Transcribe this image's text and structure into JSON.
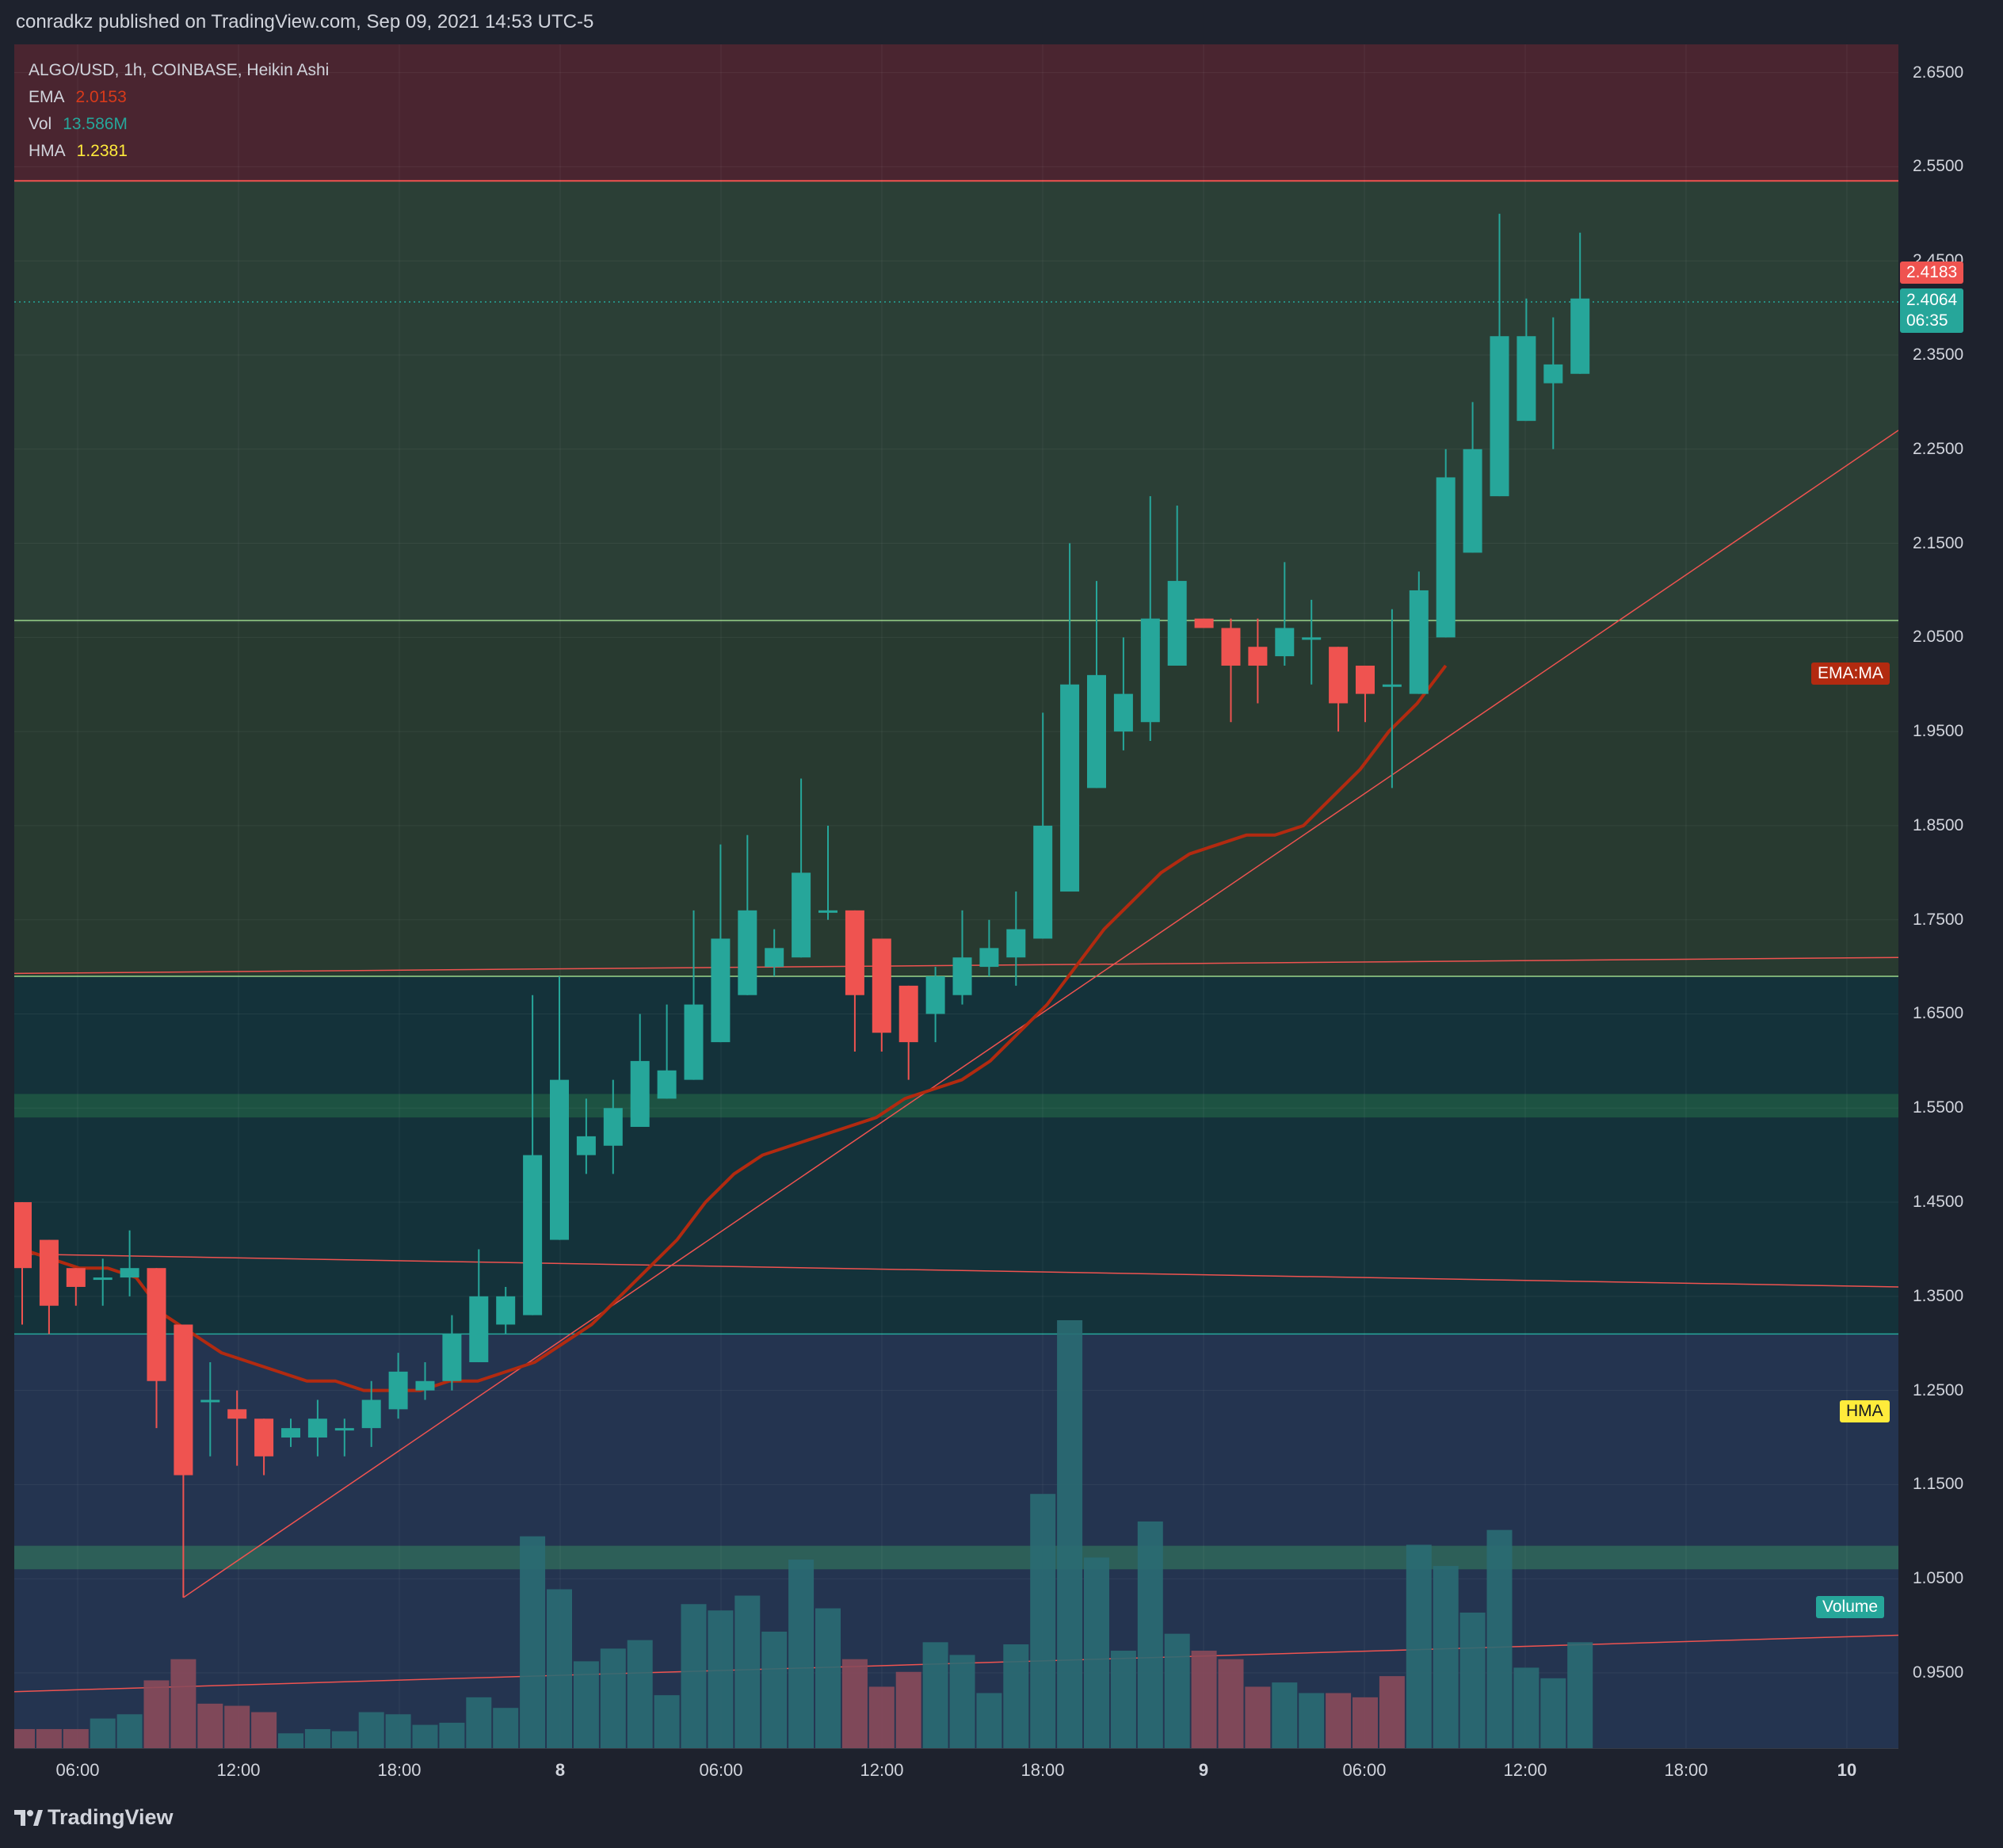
{
  "header": {
    "published": "conradkz published on TradingView.com, Sep 09, 2021 14:53 UTC-5"
  },
  "legend": {
    "symbol": "ALGO/USD, 1h, COINBASE, Heikin Ashi",
    "ema_label": "EMA",
    "ema_value": "2.0153",
    "vol_label": "Vol",
    "vol_value": "13.586M",
    "hma_label": "HMA",
    "hma_value": "1.2381"
  },
  "price_axis": {
    "labels": [
      "2.6500",
      "2.5500",
      "2.4500",
      "2.3500",
      "2.2500",
      "2.1500",
      "2.0500",
      "1.9500",
      "1.8500",
      "1.7500",
      "1.6500",
      "1.5500",
      "1.4500",
      "1.3500",
      "1.2500",
      "1.1500",
      "1.0500",
      "0.9500"
    ],
    "high_tag": "2.4183",
    "last_tag": "2.4064",
    "countdown": "06:35"
  },
  "time_axis": {
    "labels": [
      "06:00",
      "12:00",
      "18:00",
      "8",
      "06:00",
      "12:00",
      "18:00",
      "9",
      "06:00",
      "12:00",
      "18:00",
      "10"
    ]
  },
  "tags": {
    "ema_ma": "EMA:MA",
    "hma": "HMA",
    "volume": "Volume"
  },
  "footer": {
    "brand": "TradingView"
  },
  "colors": {
    "bg": "#1e222d",
    "up": "#26a69a",
    "down": "#ef5350",
    "ema": "#b22a10",
    "hma": "#ffeb3b",
    "volume_tag": "#26a69a",
    "zone_red": "#4a2530",
    "zone_green": "#2b3f36",
    "zone_teal": "#14323a",
    "zone_blue": "#243450"
  },
  "chart_data": {
    "type": "candlestick",
    "title": "ALGO/USD, 1h, COINBASE, Heikin Ashi",
    "ylim": [
      0.87,
      2.68
    ],
    "x_range_hours": [
      0,
      70
    ],
    "start_label": "Sep 07 03:00",
    "candles": [
      {
        "o": 1.45,
        "h": 1.45,
        "l": 1.32,
        "c": 1.38
      },
      {
        "o": 1.41,
        "h": 1.41,
        "l": 1.31,
        "c": 1.34
      },
      {
        "o": 1.38,
        "h": 1.38,
        "l": 1.34,
        "c": 1.36
      },
      {
        "o": 1.37,
        "h": 1.39,
        "l": 1.34,
        "c": 1.37
      },
      {
        "o": 1.37,
        "h": 1.42,
        "l": 1.35,
        "c": 1.38
      },
      {
        "o": 1.38,
        "h": 1.38,
        "l": 1.21,
        "c": 1.26
      },
      {
        "o": 1.32,
        "h": 1.32,
        "l": 1.03,
        "c": 1.16
      },
      {
        "o": 1.24,
        "h": 1.28,
        "l": 1.18,
        "c": 1.24
      },
      {
        "o": 1.23,
        "h": 1.25,
        "l": 1.17,
        "c": 1.22
      },
      {
        "o": 1.22,
        "h": 1.22,
        "l": 1.16,
        "c": 1.18
      },
      {
        "o": 1.2,
        "h": 1.22,
        "l": 1.19,
        "c": 1.21
      },
      {
        "o": 1.2,
        "h": 1.24,
        "l": 1.18,
        "c": 1.22
      },
      {
        "o": 1.21,
        "h": 1.22,
        "l": 1.18,
        "c": 1.21
      },
      {
        "o": 1.21,
        "h": 1.26,
        "l": 1.19,
        "c": 1.24
      },
      {
        "o": 1.23,
        "h": 1.29,
        "l": 1.22,
        "c": 1.27
      },
      {
        "o": 1.25,
        "h": 1.28,
        "l": 1.24,
        "c": 1.26
      },
      {
        "o": 1.26,
        "h": 1.33,
        "l": 1.25,
        "c": 1.31
      },
      {
        "o": 1.28,
        "h": 1.4,
        "l": 1.28,
        "c": 1.35
      },
      {
        "o": 1.32,
        "h": 1.36,
        "l": 1.31,
        "c": 1.35
      },
      {
        "o": 1.33,
        "h": 1.67,
        "l": 1.33,
        "c": 1.5
      },
      {
        "o": 1.41,
        "h": 1.69,
        "l": 1.41,
        "c": 1.58
      },
      {
        "o": 1.5,
        "h": 1.56,
        "l": 1.48,
        "c": 1.52
      },
      {
        "o": 1.51,
        "h": 1.58,
        "l": 1.48,
        "c": 1.55
      },
      {
        "o": 1.53,
        "h": 1.65,
        "l": 1.53,
        "c": 1.6
      },
      {
        "o": 1.56,
        "h": 1.66,
        "l": 1.56,
        "c": 1.59
      },
      {
        "o": 1.58,
        "h": 1.76,
        "l": 1.58,
        "c": 1.66
      },
      {
        "o": 1.62,
        "h": 1.83,
        "l": 1.62,
        "c": 1.73
      },
      {
        "o": 1.67,
        "h": 1.84,
        "l": 1.67,
        "c": 1.76
      },
      {
        "o": 1.7,
        "h": 1.74,
        "l": 1.69,
        "c": 1.72
      },
      {
        "o": 1.71,
        "h": 1.9,
        "l": 1.71,
        "c": 1.8
      },
      {
        "o": 1.76,
        "h": 1.85,
        "l": 1.75,
        "c": 1.76
      },
      {
        "o": 1.76,
        "h": 1.76,
        "l": 1.61,
        "c": 1.67
      },
      {
        "o": 1.73,
        "h": 1.73,
        "l": 1.61,
        "c": 1.63
      },
      {
        "o": 1.68,
        "h": 1.68,
        "l": 1.58,
        "c": 1.62
      },
      {
        "o": 1.65,
        "h": 1.7,
        "l": 1.62,
        "c": 1.69
      },
      {
        "o": 1.67,
        "h": 1.76,
        "l": 1.66,
        "c": 1.71
      },
      {
        "o": 1.7,
        "h": 1.75,
        "l": 1.69,
        "c": 1.72
      },
      {
        "o": 1.71,
        "h": 1.78,
        "l": 1.68,
        "c": 1.74
      },
      {
        "o": 1.73,
        "h": 1.97,
        "l": 1.73,
        "c": 1.85
      },
      {
        "o": 1.78,
        "h": 2.15,
        "l": 1.78,
        "c": 2.0
      },
      {
        "o": 1.89,
        "h": 2.11,
        "l": 1.89,
        "c": 2.01
      },
      {
        "o": 1.95,
        "h": 2.05,
        "l": 1.93,
        "c": 1.99
      },
      {
        "o": 1.96,
        "h": 2.2,
        "l": 1.94,
        "c": 2.07
      },
      {
        "o": 2.02,
        "h": 2.19,
        "l": 2.02,
        "c": 2.11
      },
      {
        "o": 2.07,
        "h": 2.07,
        "l": 2.06,
        "c": 2.06
      },
      {
        "o": 2.06,
        "h": 2.07,
        "l": 1.96,
        "c": 2.02
      },
      {
        "o": 2.04,
        "h": 2.07,
        "l": 1.98,
        "c": 2.02
      },
      {
        "o": 2.03,
        "h": 2.13,
        "l": 2.02,
        "c": 2.06
      },
      {
        "o": 2.05,
        "h": 2.09,
        "l": 2.0,
        "c": 2.05
      },
      {
        "o": 2.04,
        "h": 2.04,
        "l": 1.95,
        "c": 1.98
      },
      {
        "o": 2.02,
        "h": 2.02,
        "l": 1.96,
        "c": 1.99
      },
      {
        "o": 2.0,
        "h": 2.08,
        "l": 1.89,
        "c": 2.0
      },
      {
        "o": 1.99,
        "h": 2.12,
        "l": 1.99,
        "c": 2.1
      },
      {
        "o": 2.05,
        "h": 2.25,
        "l": 2.05,
        "c": 2.22
      },
      {
        "o": 2.14,
        "h": 2.3,
        "l": 2.14,
        "c": 2.25
      },
      {
        "o": 2.2,
        "h": 2.5,
        "l": 2.2,
        "c": 2.37
      },
      {
        "o": 2.28,
        "h": 2.41,
        "l": 2.28,
        "c": 2.37
      },
      {
        "o": 2.32,
        "h": 2.39,
        "l": 2.25,
        "c": 2.34
      },
      {
        "o": 2.33,
        "h": 2.48,
        "l": 2.33,
        "c": 2.41
      }
    ],
    "volume": [
      0.09,
      0.09,
      0.09,
      0.14,
      0.16,
      0.32,
      0.42,
      0.21,
      0.2,
      0.17,
      0.07,
      0.09,
      0.08,
      0.17,
      0.16,
      0.11,
      0.12,
      0.24,
      0.19,
      1.0,
      0.75,
      0.41,
      0.47,
      0.51,
      0.25,
      0.68,
      0.65,
      0.72,
      0.55,
      0.89,
      0.66,
      0.42,
      0.29,
      0.36,
      0.5,
      0.44,
      0.26,
      0.49,
      1.2,
      2.02,
      0.9,
      0.46,
      1.07,
      0.54,
      0.46,
      0.42,
      0.29,
      0.31,
      0.26,
      0.26,
      0.24,
      0.34,
      0.96,
      0.86,
      0.64,
      1.03,
      0.38,
      0.33,
      0.5
    ],
    "volume_down": [
      true,
      true,
      true,
      false,
      false,
      true,
      true,
      true,
      true,
      true,
      false,
      false,
      false,
      false,
      false,
      false,
      false,
      false,
      false,
      false,
      false,
      false,
      false,
      false,
      false,
      false,
      false,
      false,
      false,
      false,
      false,
      true,
      true,
      true,
      false,
      false,
      false,
      false,
      false,
      false,
      false,
      false,
      false,
      false,
      true,
      true,
      true,
      false,
      false,
      true,
      true,
      true,
      false,
      false,
      false,
      false,
      false,
      false,
      false
    ],
    "ema": [
      1.4,
      1.39,
      1.38,
      1.38,
      1.37,
      1.33,
      1.31,
      1.29,
      1.28,
      1.27,
      1.26,
      1.26,
      1.25,
      1.25,
      1.25,
      1.26,
      1.26,
      1.27,
      1.28,
      1.3,
      1.32,
      1.35,
      1.38,
      1.41,
      1.45,
      1.48,
      1.5,
      1.51,
      1.52,
      1.53,
      1.54,
      1.56,
      1.57,
      1.58,
      1.6,
      1.63,
      1.66,
      1.7,
      1.74,
      1.77,
      1.8,
      1.82,
      1.83,
      1.84,
      1.84,
      1.85,
      1.88,
      1.91,
      1.95,
      1.98,
      2.02
    ],
    "ema_start_index": 0
  }
}
